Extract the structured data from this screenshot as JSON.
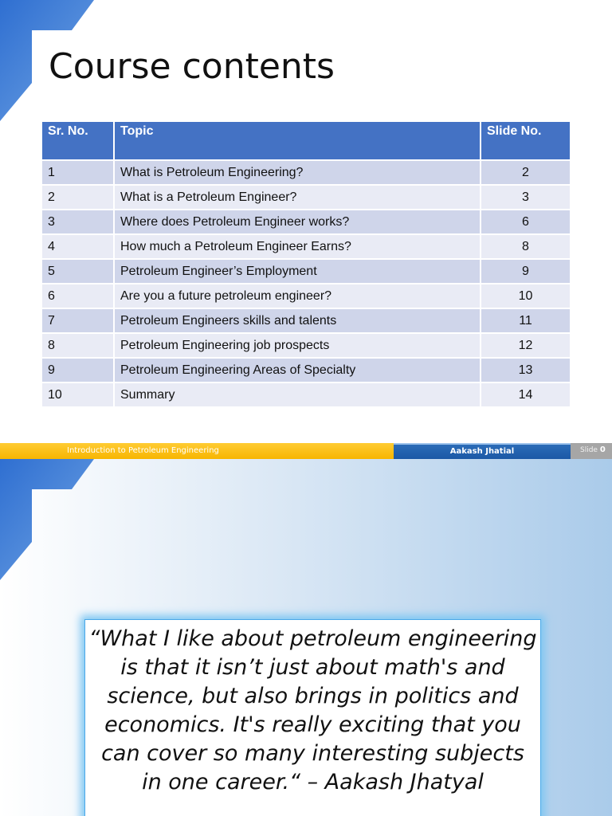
{
  "slide1": {
    "title": "Course contents",
    "table": {
      "headers": [
        "Sr. No.",
        "Topic",
        "Slide No."
      ],
      "rows": [
        {
          "sr": "1",
          "topic": "What is Petroleum Engineering?",
          "slide": "2"
        },
        {
          "sr": "2",
          "topic": "What is a Petroleum Engineer?",
          "slide": "3"
        },
        {
          "sr": "3",
          "topic": "Where does Petroleum Engineer works?",
          "slide": "6"
        },
        {
          "sr": "4",
          "topic": "How much a Petroleum Engineer Earns?",
          "slide": "8"
        },
        {
          "sr": "5",
          "topic": "Petroleum Engineer’s Employment",
          "slide": "9"
        },
        {
          "sr": "6",
          "topic": "Are you a future petroleum engineer?",
          "slide": "10"
        },
        {
          "sr": "7",
          "topic": "Petroleum Engineers skills and talents",
          "slide": "11"
        },
        {
          "sr": "8",
          "topic": "Petroleum Engineering job prospects",
          "slide": "12"
        },
        {
          "sr": "9",
          "topic": "Petroleum Engineering Areas of Specialty",
          "slide": "13"
        },
        {
          "sr": "10",
          "topic": "Summary",
          "slide": "14"
        }
      ]
    }
  },
  "footer": {
    "course": "Introduction to Petroleum Engineering",
    "author": "Aakash Jhatial",
    "slide_label": "Slide",
    "slide_number": "0"
  },
  "slide2": {
    "quote": "“What I like about petroleum engineering is that it isn’t just about math's and science, but also brings in politics and economics. It's really exciting that you can cover so many interesting subjects in one career.“ – Aakash Jhatyal"
  },
  "colors": {
    "table_header": "#4472c4",
    "table_row_odd": "#cfd5ea",
    "table_row_even": "#e9ebf5",
    "footer_yellow": "#f7b500",
    "footer_blue": "#1b58a6",
    "quote_glow": "#7fc7f2"
  },
  "icons": [
    "corner-decoration-icon"
  ]
}
